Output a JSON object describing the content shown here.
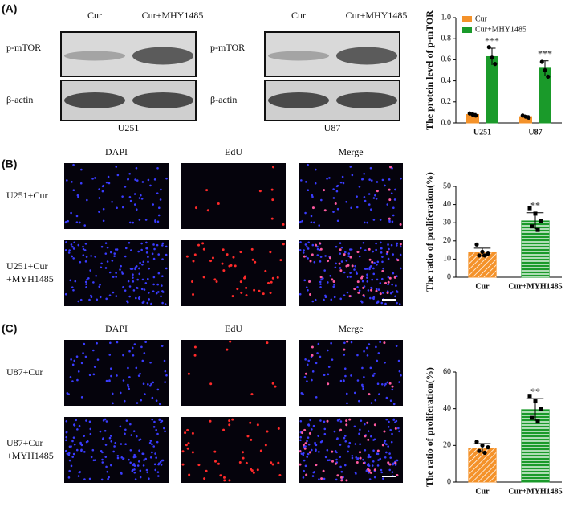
{
  "panel_labels": [
    "(A)",
    "(B)",
    "(C)"
  ],
  "blots": [
    {
      "columns": [
        "Cur",
        "Cur+MHY1485"
      ],
      "rows": [
        "p-mTOR",
        "β-actin"
      ],
      "cell_line": "U251"
    },
    {
      "columns": [
        "Cur",
        "Cur+MHY1485"
      ],
      "rows": [
        "p-mTOR",
        "β-actin"
      ],
      "cell_line": "U87"
    }
  ],
  "imaging": [
    {
      "columns": [
        "DAPI",
        "EdU",
        "Merge"
      ],
      "rows": [
        [
          "U251+Cur"
        ],
        [
          "U251+Cur",
          "+MYH1485"
        ]
      ]
    },
    {
      "columns": [
        "DAPI",
        "EdU",
        "Merge"
      ],
      "rows": [
        [
          "U87+Cur"
        ],
        [
          "U87+Cur",
          "+MYH1485"
        ]
      ]
    }
  ],
  "chart_data": [
    {
      "type": "bar",
      "ylabel": "The protein level of p-mTOR",
      "categories": [
        "U251",
        "U87"
      ],
      "series": [
        {
          "name": "Cur",
          "color": "#f4922a",
          "values": [
            0.08,
            0.06
          ],
          "errors": [
            0.01,
            0.01
          ],
          "points": [
            [
              0.09,
              0.08,
              0.07
            ],
            [
              0.07,
              0.06,
              0.05
            ]
          ]
        },
        {
          "name": "Cur+MHY1485",
          "color": "#1a9a2a",
          "values": [
            0.63,
            0.52
          ],
          "errors": [
            0.08,
            0.07
          ],
          "points": [
            [
              0.72,
              0.62,
              0.56
            ],
            [
              0.58,
              0.5,
              0.44
            ]
          ],
          "significance": [
            "***",
            "***"
          ]
        }
      ],
      "ylim": [
        0,
        1
      ],
      "yticks": [
        {
          "value": 0,
          "label": "0.0"
        },
        0.2,
        0.4,
        0.6,
        0.8,
        {
          "value": 1,
          "label": "1.0"
        }
      ],
      "legend": "upper left"
    },
    {
      "type": "bar",
      "ylabel": "The ratio of proliferation(%)",
      "categories": [
        "Cur",
        "Cur+MYH1485"
      ],
      "values": [
        13.5,
        31
      ],
      "errors": [
        2.5,
        4.5
      ],
      "colors": [
        "#f4922a",
        "#1a9a2a"
      ],
      "hatches": [
        "diagonal",
        "horizontal"
      ],
      "points": [
        [
          18,
          14,
          13,
          12,
          12
        ],
        [
          38,
          35,
          31,
          28,
          26
        ]
      ],
      "significance": [
        null,
        "**"
      ],
      "ylim": [
        0,
        50
      ],
      "yticks": [
        0,
        10,
        20,
        30,
        40,
        50
      ]
    },
    {
      "type": "bar",
      "ylabel": "The ratio of proliferation(%)",
      "categories": [
        "Cur",
        "Cur+MYH1485"
      ],
      "values": [
        18.5,
        39.5
      ],
      "errors": [
        2.5,
        6
      ],
      "colors": [
        "#f4922a",
        "#1a9a2a"
      ],
      "hatches": [
        "diagonal",
        "horizontal"
      ],
      "points": [
        [
          22,
          20,
          19,
          17,
          16
        ],
        [
          47,
          44,
          40,
          35,
          33
        ]
      ],
      "significance": [
        null,
        "**"
      ],
      "ylim": [
        0,
        60
      ],
      "yticks": [
        0,
        20,
        40,
        60
      ]
    }
  ]
}
